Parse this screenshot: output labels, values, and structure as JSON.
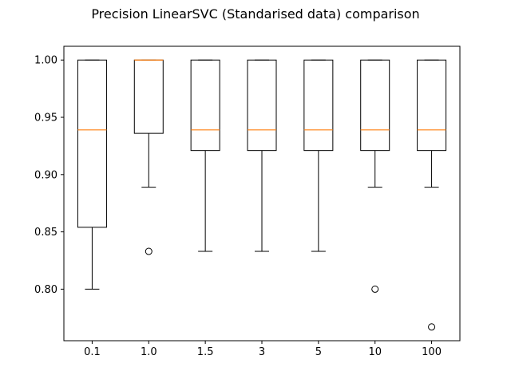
{
  "chart_data": {
    "type": "box",
    "title": "Precision LinearSVC (Standarised data) comparison",
    "xlabel": "",
    "ylabel": "",
    "ylim": [
      0.755,
      1.012
    ],
    "yticks": [
      0.8,
      0.85,
      0.9,
      0.95,
      1.0
    ],
    "ytick_labels": [
      "0.80",
      "0.85",
      "0.90",
      "0.95",
      "1.00"
    ],
    "categories": [
      "0.1",
      "1.0",
      "1.5",
      "3",
      "5",
      "10",
      "100"
    ],
    "boxes": [
      {
        "label": "0.1",
        "whisker_low": 0.8,
        "q1": 0.854,
        "median": 0.939,
        "q3": 1.0,
        "whisker_high": 1.0,
        "outliers": []
      },
      {
        "label": "1.0",
        "whisker_low": 0.889,
        "q1": 0.936,
        "median": 1.0,
        "q3": 1.0,
        "whisker_high": 1.0,
        "outliers": [
          0.833
        ]
      },
      {
        "label": "1.5",
        "whisker_low": 0.833,
        "q1": 0.921,
        "median": 0.939,
        "q3": 1.0,
        "whisker_high": 1.0,
        "outliers": []
      },
      {
        "label": "3",
        "whisker_low": 0.833,
        "q1": 0.921,
        "median": 0.939,
        "q3": 1.0,
        "whisker_high": 1.0,
        "outliers": []
      },
      {
        "label": "5",
        "whisker_low": 0.833,
        "q1": 0.921,
        "median": 0.939,
        "q3": 1.0,
        "whisker_high": 1.0,
        "outliers": []
      },
      {
        "label": "10",
        "whisker_low": 0.889,
        "q1": 0.921,
        "median": 0.939,
        "q3": 1.0,
        "whisker_high": 1.0,
        "outliers": [
          0.8
        ]
      },
      {
        "label": "100",
        "whisker_low": 0.889,
        "q1": 0.921,
        "median": 0.939,
        "q3": 1.0,
        "whisker_high": 1.0,
        "outliers": [
          0.767
        ]
      }
    ],
    "grid": false,
    "colors": {
      "box": "#000000",
      "median": "#ff7f0e",
      "outlier": "#000000",
      "axes": "#000000"
    }
  }
}
